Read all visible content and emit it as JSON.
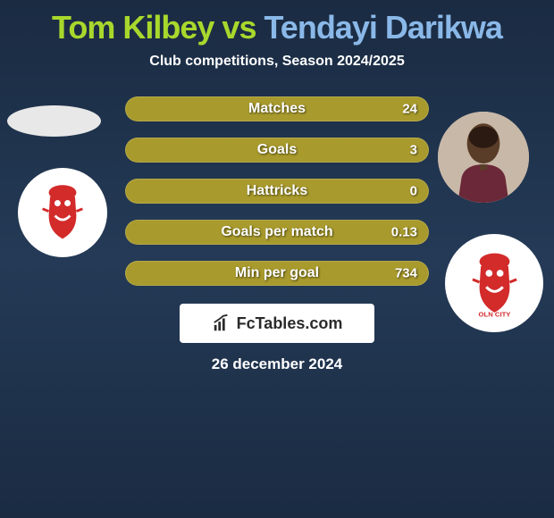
{
  "title": {
    "player1": "Tom Kilbey",
    "vs": "vs",
    "player2": "Tendayi Darikwa",
    "player1_color": "#a8d82c",
    "player2_color": "#8ab8e8"
  },
  "subtitle": "Club competitions, Season 2024/2025",
  "bar_color": "#a89a2c",
  "text_color": "#ffffff",
  "bg_gradient": [
    "#1a2b42",
    "#243a56",
    "#1a2b42"
  ],
  "stats": [
    {
      "label": "Matches",
      "value": "24"
    },
    {
      "label": "Goals",
      "value": "3"
    },
    {
      "label": "Hattricks",
      "value": "0"
    },
    {
      "label": "Goals per match",
      "value": "0.13"
    },
    {
      "label": "Min per goal",
      "value": "734"
    }
  ],
  "badge": {
    "text": "FcTables.com",
    "icon_color": "#2a2a2a"
  },
  "date": "26 december 2024",
  "crest": {
    "primary": "#d32a2a",
    "secondary": "#ffffff"
  },
  "player_photo": {
    "skin": "#5a3d28",
    "kit": "#6b2838"
  }
}
